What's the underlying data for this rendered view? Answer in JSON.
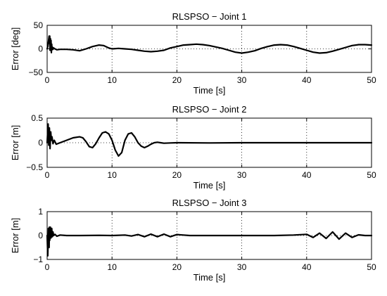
{
  "chart_data": [
    {
      "type": "line",
      "title": "RLSPSO − Joint 1",
      "xlabel": "Time [s]",
      "ylabel": "Error [deg]",
      "xlim": [
        0,
        50
      ],
      "ylim": [
        -50,
        50
      ],
      "xticks": [
        0,
        10,
        20,
        30,
        40,
        50
      ],
      "yticks": [
        -50,
        0,
        50
      ],
      "xtick_labels": [
        "0",
        "10",
        "20",
        "30",
        "40",
        "50"
      ],
      "ytick_labels": [
        "−50",
        "0",
        "50"
      ],
      "grid": "x-dotted",
      "series": [
        {
          "x": [
            0,
            0.1,
            0.2,
            0.3,
            0.35,
            0.4,
            0.45,
            0.5,
            0.55,
            0.6,
            0.65,
            0.7,
            0.75,
            0.8,
            0.9,
            1.0,
            1.2,
            1.5,
            2,
            3,
            4,
            5,
            6,
            7,
            8,
            8.7,
            9.5,
            10,
            11,
            12,
            13,
            14,
            15,
            16,
            17,
            18,
            19,
            20,
            21,
            22,
            23,
            24,
            25,
            26,
            27,
            28,
            29,
            30,
            31,
            32,
            33,
            34,
            35,
            36,
            37,
            38,
            39,
            40,
            41,
            42,
            43,
            44,
            45,
            46,
            47,
            48,
            49,
            50
          ],
          "y": [
            0,
            5,
            15,
            27,
            12,
            27,
            -3,
            22,
            0,
            18,
            -8,
            10,
            -2,
            4,
            -1,
            2,
            0,
            -2,
            -1,
            -1,
            -2,
            -4,
            0,
            5,
            8,
            7,
            2,
            0,
            1,
            0,
            -1,
            -3,
            -5,
            -6,
            -5,
            -3,
            2,
            5,
            8,
            9,
            10,
            9,
            7,
            4,
            1,
            -3,
            -7,
            -9,
            -7,
            -4,
            1,
            5,
            8,
            9,
            8,
            5,
            1,
            -3,
            -7,
            -9,
            -8,
            -5,
            -1,
            3,
            7,
            9,
            9,
            8
          ]
        }
      ]
    },
    {
      "type": "line",
      "title": "RLSPSO − Joint 2",
      "xlabel": "Time [s]",
      "ylabel": "Error [m]",
      "xlim": [
        0,
        50
      ],
      "ylim": [
        -0.5,
        0.5
      ],
      "xticks": [
        0,
        10,
        20,
        30,
        40,
        50
      ],
      "yticks": [
        -0.5,
        0,
        0.5
      ],
      "xtick_labels": [
        "0",
        "10",
        "20",
        "30",
        "40",
        "50"
      ],
      "ytick_labels": [
        "−0.5",
        "0",
        "0.5"
      ],
      "grid": "x-dotted",
      "series": [
        {
          "x": [
            0,
            0.15,
            0.25,
            0.35,
            0.45,
            0.55,
            0.65,
            0.75,
            0.9,
            1.1,
            1.4,
            2,
            3,
            4,
            5,
            5.5,
            6,
            6.5,
            7,
            7.5,
            8,
            8.5,
            9,
            9.5,
            10,
            10.5,
            11,
            11.5,
            12,
            12.5,
            13,
            13.5,
            14,
            14.5,
            15,
            15.5,
            16,
            16.5,
            17,
            17.5,
            18,
            19,
            20,
            25,
            30,
            35,
            40,
            45,
            50
          ],
          "y": [
            0,
            0.38,
            -0.05,
            0.3,
            -0.12,
            0.22,
            0.05,
            0.12,
            -0.02,
            0.05,
            -0.03,
            0.0,
            0.05,
            0.1,
            0.12,
            0.1,
            0.02,
            -0.08,
            -0.1,
            -0.02,
            0.1,
            0.2,
            0.22,
            0.18,
            0.05,
            -0.15,
            -0.27,
            -0.2,
            0.05,
            0.18,
            0.2,
            0.12,
            0.0,
            -0.07,
            -0.1,
            -0.07,
            -0.03,
            0.0,
            0.01,
            0.0,
            -0.01,
            -0.005,
            0.0,
            -0.005,
            0.0,
            0.0,
            0.0,
            0.0,
            0.0
          ]
        }
      ]
    },
    {
      "type": "line",
      "title": "RLSPSO − Joint 3",
      "xlabel": "Time [s]",
      "ylabel": "Error [m]",
      "xlim": [
        0,
        50
      ],
      "ylim": [
        -1,
        1
      ],
      "xticks": [
        0,
        10,
        20,
        30,
        40,
        50
      ],
      "yticks": [
        -1,
        0,
        1
      ],
      "xtick_labels": [
        "0",
        "10",
        "20",
        "30",
        "40",
        "50"
      ],
      "ytick_labels": [
        "−1",
        "0",
        "1"
      ],
      "grid": "x-dotted",
      "series": [
        {
          "x": [
            0,
            0.1,
            0.2,
            0.3,
            0.35,
            0.4,
            0.5,
            0.6,
            0.7,
            0.8,
            0.9,
            1.0,
            1.2,
            1.5,
            2,
            3,
            5,
            8,
            10,
            12,
            13,
            14,
            15,
            16,
            17,
            18,
            19,
            20,
            21,
            22,
            25,
            30,
            35,
            38,
            40,
            41,
            42,
            43,
            44,
            45,
            46,
            47,
            48,
            49,
            50
          ],
          "y": [
            0,
            -0.85,
            0.3,
            -0.5,
            0.35,
            -0.2,
            0.35,
            -0.1,
            0.3,
            -0.05,
            0.15,
            0.0,
            0.05,
            -0.03,
            0.02,
            0.0,
            0.0,
            0.01,
            0.0,
            0.02,
            -0.02,
            0.04,
            -0.05,
            0.06,
            -0.05,
            0.06,
            -0.05,
            0.04,
            0.02,
            0.0,
            0.0,
            0.0,
            0.0,
            0.02,
            0.05,
            -0.08,
            0.1,
            -0.12,
            0.15,
            -0.15,
            0.1,
            -0.08,
            0.03,
            0.0,
            0.0
          ]
        }
      ]
    }
  ]
}
